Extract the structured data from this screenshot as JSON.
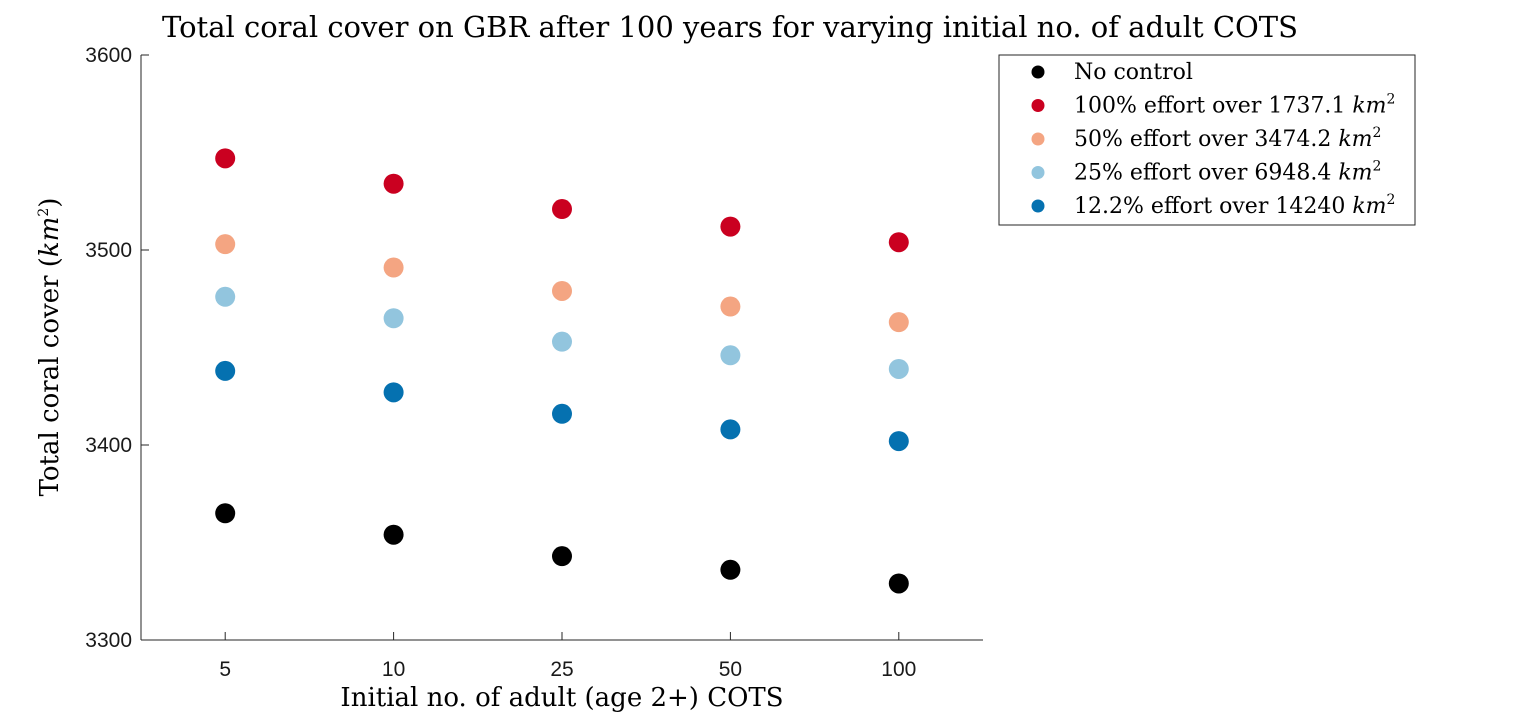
{
  "chart_data": {
    "type": "scatter",
    "title": "Total coral cover on GBR after 100 years for varying initial no. of adult COTS",
    "xlabel": "Initial no. of adult (age 2+) COTS",
    "ylabel": "Total coral cover (km^2)",
    "ylabel_main": "Total coral cover (",
    "ylabel_unit": "km",
    "ylabel_exp": "2",
    "ylabel_close": ")",
    "categories": [
      "5",
      "10",
      "25",
      "50",
      "100"
    ],
    "ylim": [
      3300,
      3600
    ],
    "yticks": [
      "3300",
      "3400",
      "3500",
      "3600"
    ],
    "grid": false,
    "legend_position": "outside-top-right",
    "series": [
      {
        "name": "No control",
        "unit": "",
        "exp": "",
        "color": "#000000",
        "values": [
          3365,
          3354,
          3343,
          3336,
          3329
        ]
      },
      {
        "name": "100% effort over 1737.1 ",
        "unit": "km",
        "exp": "2",
        "color": "#ca0020",
        "values": [
          3547,
          3534,
          3521,
          3512,
          3504
        ]
      },
      {
        "name": "50% effort over 3474.2 ",
        "unit": "km",
        "exp": "2",
        "color": "#f4a582",
        "values": [
          3503,
          3491,
          3479,
          3471,
          3463
        ]
      },
      {
        "name": "25% effort over 6948.4 ",
        "unit": "km",
        "exp": "2",
        "color": "#92c5de",
        "values": [
          3476,
          3465,
          3453,
          3446,
          3439
        ]
      },
      {
        "name": "12.2% effort over 14240 ",
        "unit": "km",
        "exp": "2",
        "color": "#0571b0",
        "values": [
          3438,
          3427,
          3416,
          3408,
          3402
        ]
      }
    ]
  }
}
